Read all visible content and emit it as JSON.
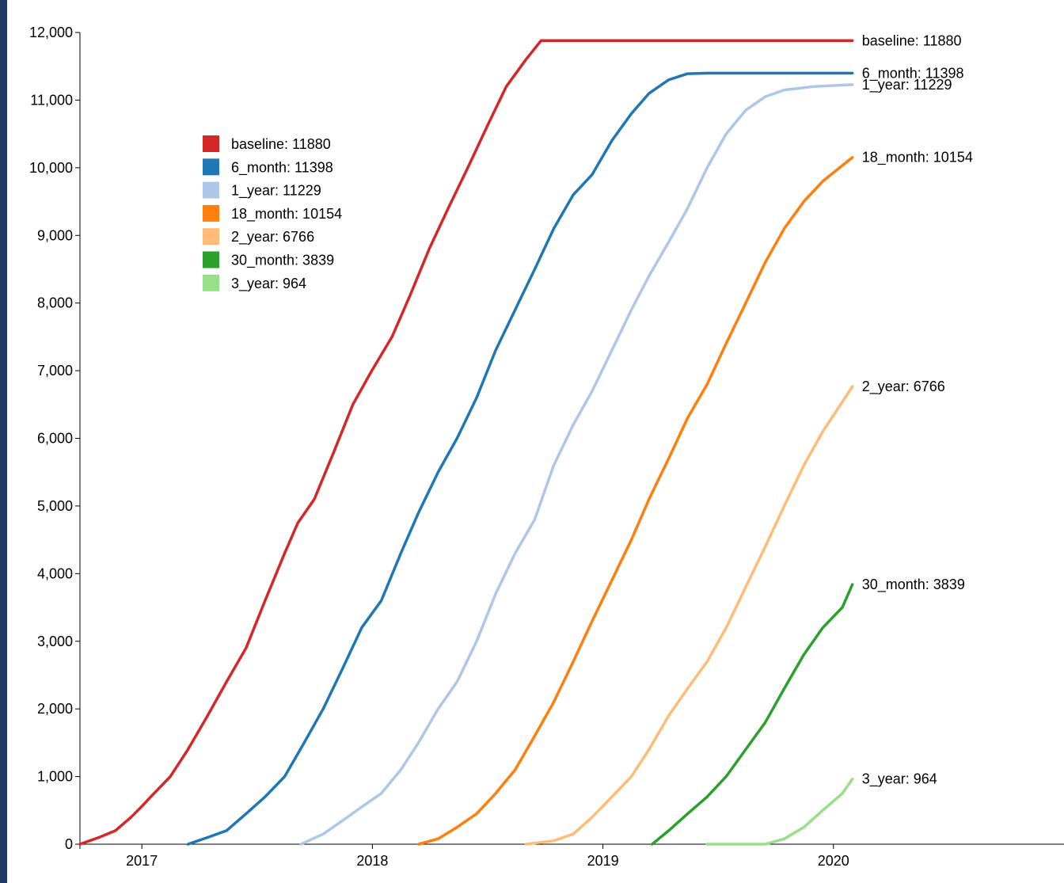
{
  "chart_data": {
    "type": "line",
    "title": "",
    "xlabel": "",
    "ylabel": "",
    "x_range": [
      "2016-09-25",
      "2020-12-31"
    ],
    "ylim": [
      0,
      12000
    ],
    "y_ticks": [
      0,
      1000,
      2000,
      3000,
      4000,
      5000,
      6000,
      7000,
      8000,
      9000,
      10000,
      11000,
      12000
    ],
    "y_tick_labels": [
      "0",
      "1,000",
      "2,000",
      "3,000",
      "4,000",
      "5,000",
      "6,000",
      "7,000",
      "8,000",
      "9,000",
      "10,000",
      "11,000",
      "12,000"
    ],
    "x_ticks": [
      "2017-01-01",
      "2018-01-01",
      "2019-01-01",
      "2020-01-01"
    ],
    "x_tick_labels": [
      "2017",
      "2018",
      "2019",
      "2020"
    ],
    "grid": false,
    "legend_position": "top-left",
    "series": [
      {
        "name": "baseline",
        "final": 11880,
        "label": "baseline: 11880",
        "color": "#d62728",
        "points": [
          [
            "2016-09-25",
            0
          ],
          [
            "2016-10-25",
            100
          ],
          [
            "2016-11-20",
            200
          ],
          [
            "2016-12-15",
            400
          ],
          [
            "2016-12-31",
            550
          ],
          [
            "2017-01-15",
            700
          ],
          [
            "2017-02-15",
            1000
          ],
          [
            "2017-03-15",
            1400
          ],
          [
            "2017-04-15",
            1900
          ],
          [
            "2017-05-15",
            2400
          ],
          [
            "2017-06-15",
            2900
          ],
          [
            "2017-07-15",
            3600
          ],
          [
            "2017-08-15",
            4300
          ],
          [
            "2017-09-05",
            4750
          ],
          [
            "2017-10-01",
            5100
          ],
          [
            "2017-11-01",
            5800
          ],
          [
            "2017-12-01",
            6500
          ],
          [
            "2017-12-31",
            7000
          ],
          [
            "2018-02-01",
            7500
          ],
          [
            "2018-03-01",
            8100
          ],
          [
            "2018-04-01",
            8800
          ],
          [
            "2018-05-01",
            9400
          ],
          [
            "2018-06-01",
            10000
          ],
          [
            "2018-07-01",
            10600
          ],
          [
            "2018-08-01",
            11200
          ],
          [
            "2018-09-01",
            11600
          ],
          [
            "2018-09-25",
            11880
          ],
          [
            "2020-01-31",
            11880
          ]
        ]
      },
      {
        "name": "6_month",
        "final": 11398,
        "label": "6_month: 11398",
        "color": "#1f77b4",
        "points": [
          [
            "2017-03-15",
            0
          ],
          [
            "2017-04-15",
            100
          ],
          [
            "2017-05-15",
            200
          ],
          [
            "2017-06-15",
            450
          ],
          [
            "2017-07-15",
            700
          ],
          [
            "2017-08-15",
            1000
          ],
          [
            "2017-09-15",
            1500
          ],
          [
            "2017-10-15",
            2000
          ],
          [
            "2017-11-15",
            2600
          ],
          [
            "2017-12-15",
            3200
          ],
          [
            "2018-01-15",
            3600
          ],
          [
            "2018-02-15",
            4300
          ],
          [
            "2018-03-15",
            4900
          ],
          [
            "2018-04-15",
            5500
          ],
          [
            "2018-05-15",
            6000
          ],
          [
            "2018-06-15",
            6600
          ],
          [
            "2018-07-15",
            7300
          ],
          [
            "2018-08-15",
            7900
          ],
          [
            "2018-09-15",
            8500
          ],
          [
            "2018-10-15",
            9100
          ],
          [
            "2018-11-15",
            9600
          ],
          [
            "2018-12-15",
            9900
          ],
          [
            "2019-01-15",
            10400
          ],
          [
            "2019-02-15",
            10800
          ],
          [
            "2019-03-15",
            11100
          ],
          [
            "2019-04-15",
            11300
          ],
          [
            "2019-05-15",
            11390
          ],
          [
            "2019-06-15",
            11398
          ],
          [
            "2020-01-31",
            11398
          ]
        ]
      },
      {
        "name": "1_year",
        "final": 11229,
        "label": "1_year: 11229",
        "color": "#aec7e8",
        "points": [
          [
            "2017-09-10",
            0
          ],
          [
            "2017-10-15",
            150
          ],
          [
            "2017-11-15",
            350
          ],
          [
            "2017-12-15",
            550
          ],
          [
            "2018-01-15",
            750
          ],
          [
            "2018-02-15",
            1100
          ],
          [
            "2018-03-15",
            1500
          ],
          [
            "2018-04-15",
            2000
          ],
          [
            "2018-05-15",
            2400
          ],
          [
            "2018-06-15",
            3000
          ],
          [
            "2018-07-15",
            3700
          ],
          [
            "2018-08-15",
            4300
          ],
          [
            "2018-09-15",
            4800
          ],
          [
            "2018-10-15",
            5600
          ],
          [
            "2018-11-15",
            6200
          ],
          [
            "2018-12-15",
            6700
          ],
          [
            "2019-01-15",
            7300
          ],
          [
            "2019-02-15",
            7900
          ],
          [
            "2019-03-15",
            8400
          ],
          [
            "2019-04-15",
            8900
          ],
          [
            "2019-05-15",
            9400
          ],
          [
            "2019-06-15",
            10000
          ],
          [
            "2019-07-15",
            10500
          ],
          [
            "2019-08-15",
            10850
          ],
          [
            "2019-09-15",
            11050
          ],
          [
            "2019-10-15",
            11150
          ],
          [
            "2019-12-01",
            11200
          ],
          [
            "2020-01-31",
            11229
          ]
        ]
      },
      {
        "name": "18_month",
        "final": 10154,
        "label": "18_month: 10154",
        "color": "#ff7f0e",
        "points": [
          [
            "2018-03-15",
            0
          ],
          [
            "2018-04-15",
            80
          ],
          [
            "2018-05-15",
            250
          ],
          [
            "2018-06-15",
            450
          ],
          [
            "2018-07-15",
            750
          ],
          [
            "2018-08-15",
            1100
          ],
          [
            "2018-09-15",
            1600
          ],
          [
            "2018-10-15",
            2100
          ],
          [
            "2018-11-15",
            2700
          ],
          [
            "2018-12-15",
            3300
          ],
          [
            "2019-01-15",
            3900
          ],
          [
            "2019-02-15",
            4500
          ],
          [
            "2019-03-15",
            5100
          ],
          [
            "2019-04-15",
            5700
          ],
          [
            "2019-05-15",
            6300
          ],
          [
            "2019-06-15",
            6800
          ],
          [
            "2019-07-15",
            7400
          ],
          [
            "2019-08-15",
            8000
          ],
          [
            "2019-09-15",
            8600
          ],
          [
            "2019-10-15",
            9100
          ],
          [
            "2019-11-15",
            9500
          ],
          [
            "2019-12-15",
            9800
          ],
          [
            "2020-01-31",
            10154
          ]
        ]
      },
      {
        "name": "2_year",
        "final": 6766,
        "label": "2_year: 6766",
        "color": "#ffbb78",
        "points": [
          [
            "2018-09-01",
            0
          ],
          [
            "2018-10-15",
            50
          ],
          [
            "2018-11-15",
            150
          ],
          [
            "2018-12-15",
            400
          ],
          [
            "2019-01-15",
            700
          ],
          [
            "2019-02-15",
            1000
          ],
          [
            "2019-03-15",
            1400
          ],
          [
            "2019-04-15",
            1900
          ],
          [
            "2019-05-15",
            2300
          ],
          [
            "2019-06-15",
            2700
          ],
          [
            "2019-07-15",
            3200
          ],
          [
            "2019-08-15",
            3800
          ],
          [
            "2019-09-15",
            4400
          ],
          [
            "2019-10-15",
            5000
          ],
          [
            "2019-11-15",
            5600
          ],
          [
            "2019-12-15",
            6100
          ],
          [
            "2020-01-31",
            6766
          ]
        ]
      },
      {
        "name": "30_month",
        "final": 3839,
        "label": "30_month: 3839",
        "color": "#2ca02c",
        "points": [
          [
            "2019-03-20",
            0
          ],
          [
            "2019-04-15",
            200
          ],
          [
            "2019-05-15",
            450
          ],
          [
            "2019-06-15",
            700
          ],
          [
            "2019-07-15",
            1000
          ],
          [
            "2019-08-15",
            1400
          ],
          [
            "2019-09-15",
            1800
          ],
          [
            "2019-10-15",
            2300
          ],
          [
            "2019-11-15",
            2800
          ],
          [
            "2019-12-15",
            3200
          ],
          [
            "2020-01-15",
            3500
          ],
          [
            "2020-01-31",
            3839
          ]
        ]
      },
      {
        "name": "3_year",
        "final": 964,
        "label": "3_year: 964",
        "color": "#98df8a",
        "points": [
          [
            "2019-06-15",
            0
          ],
          [
            "2019-07-15",
            0
          ],
          [
            "2019-09-15",
            0
          ],
          [
            "2019-10-15",
            80
          ],
          [
            "2019-11-15",
            250
          ],
          [
            "2019-12-15",
            500
          ],
          [
            "2020-01-15",
            750
          ],
          [
            "2020-01-31",
            964
          ]
        ]
      }
    ]
  }
}
